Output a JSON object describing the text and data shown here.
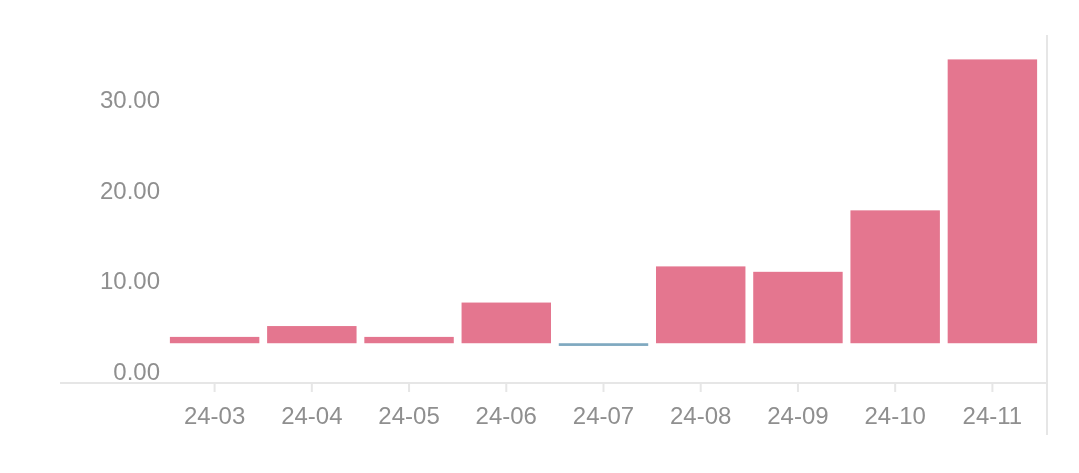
{
  "chart_data": {
    "type": "bar",
    "categories": [
      "24-03",
      "24-04",
      "24-05",
      "24-06",
      "24-07",
      "24-08",
      "24-09",
      "24-10",
      "24-11"
    ],
    "values": [
      0.7,
      1.9,
      0.7,
      4.5,
      -0.3,
      8.5,
      7.9,
      14.7,
      31.4
    ],
    "base": [
      3.1,
      3.1,
      3.1,
      3.1,
      3.1,
      3.1,
      3.1,
      3.1,
      3.1
    ],
    "colors": [
      "#e4768f",
      "#e4768f",
      "#e4768f",
      "#e4768f",
      "#7fa9c0",
      "#e4768f",
      "#e4768f",
      "#e4768f",
      "#e4768f"
    ],
    "ylim": [
      -1.3,
      37.2
    ],
    "yticks": [
      {
        "value": 0,
        "label": "0.00"
      },
      {
        "value": 10,
        "label": "10.00"
      },
      {
        "value": 20,
        "label": "20.00"
      },
      {
        "value": 30,
        "label": "30.00"
      }
    ],
    "grid": false
  }
}
